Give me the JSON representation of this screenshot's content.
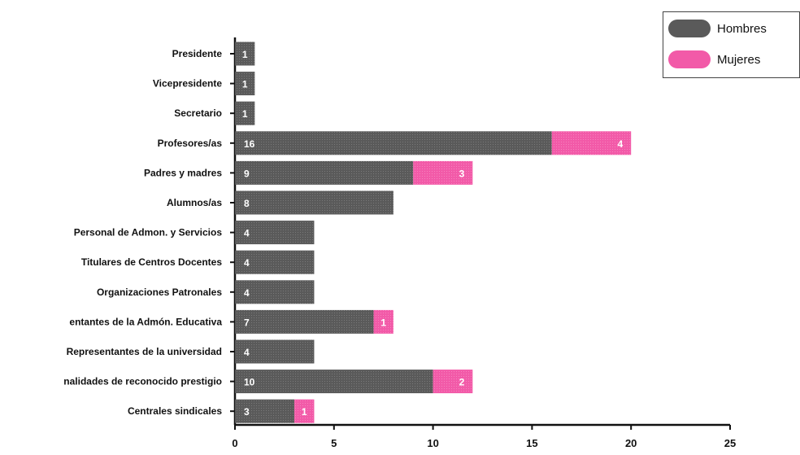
{
  "chart_data": {
    "type": "bar",
    "orientation": "horizontal",
    "stacked": true,
    "categories": [
      "Presidente",
      "Vicepresidente",
      "Secretario",
      "Profesores/as",
      "Padres y madres",
      "Alumnos/as",
      "Personal de Admon. y Servicios",
      "Titulares de Centros Docentes",
      "Organizaciones Patronales",
      "Representantes de la Admón. Educativa",
      "Representantes de la universidad",
      "Personalidades de reconocido prestigio",
      "Centrales sindicales"
    ],
    "category_labels_visible": [
      "Presidente",
      "Vicepresidente",
      "Secretario",
      "Profesores/as",
      "Padres y madres",
      "Alumnos/as",
      "Personal de Admon. y Servicios",
      "Titulares de Centros Docentes",
      "Organizaciones Patronales",
      "entantes de la Admón. Educativa",
      "Representantes de la universidad",
      "nalidades de reconocido prestigio",
      "Centrales sindicales"
    ],
    "series": [
      {
        "name": "Hombres",
        "color": "#5a5a5a",
        "values": [
          1,
          1,
          1,
          16,
          9,
          8,
          4,
          4,
          4,
          7,
          4,
          10,
          3
        ]
      },
      {
        "name": "Mujeres",
        "color": "#f25aa8",
        "values": [
          0,
          0,
          0,
          4,
          3,
          0,
          0,
          0,
          0,
          1,
          0,
          2,
          1
        ]
      }
    ],
    "data_labels": {
      "Hombres": [
        "1",
        "1",
        "1",
        "16",
        "9",
        "8",
        "4",
        "4",
        "4",
        "7",
        "4",
        "10",
        "3"
      ],
      "Mujeres": [
        "",
        "",
        "",
        "4",
        "3",
        "",
        "",
        "",
        "",
        "1",
        "",
        "2",
        "1"
      ]
    },
    "xlim": [
      0,
      25
    ],
    "xticks": [
      0,
      5,
      10,
      15,
      20,
      25
    ],
    "xtick_labels": [
      "0",
      "5",
      "10",
      "15",
      "20",
      "25"
    ],
    "grid": false,
    "legend": {
      "position": "top-right",
      "entries": [
        "Hombres",
        "Mujeres"
      ]
    }
  }
}
